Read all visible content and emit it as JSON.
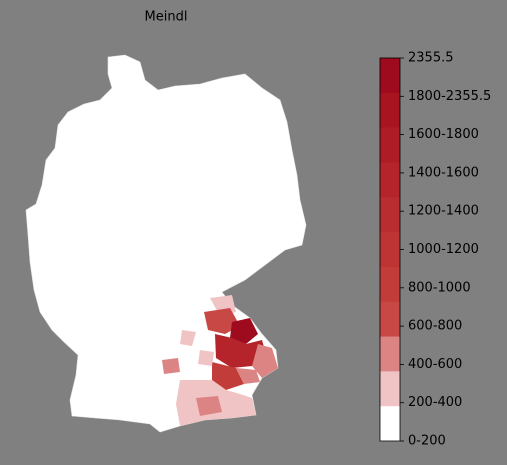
{
  "title": "Meindl",
  "colorbar": {
    "labels": [
      "2355.5",
      "1800-2355.5",
      "1600-1800",
      "1400-1600",
      "1200-1400",
      "1000-1200",
      "800-1000",
      "600-800",
      "400-600",
      "200-400",
      "0-200"
    ],
    "colors": [
      "#9e0a1e",
      "#a8141f",
      "#ae1c25",
      "#b4242a",
      "#b92c2f",
      "#be3434",
      "#c23c3a",
      "#c84846",
      "#dc8484",
      "#f0c4c4",
      "#ffffff"
    ]
  }
}
